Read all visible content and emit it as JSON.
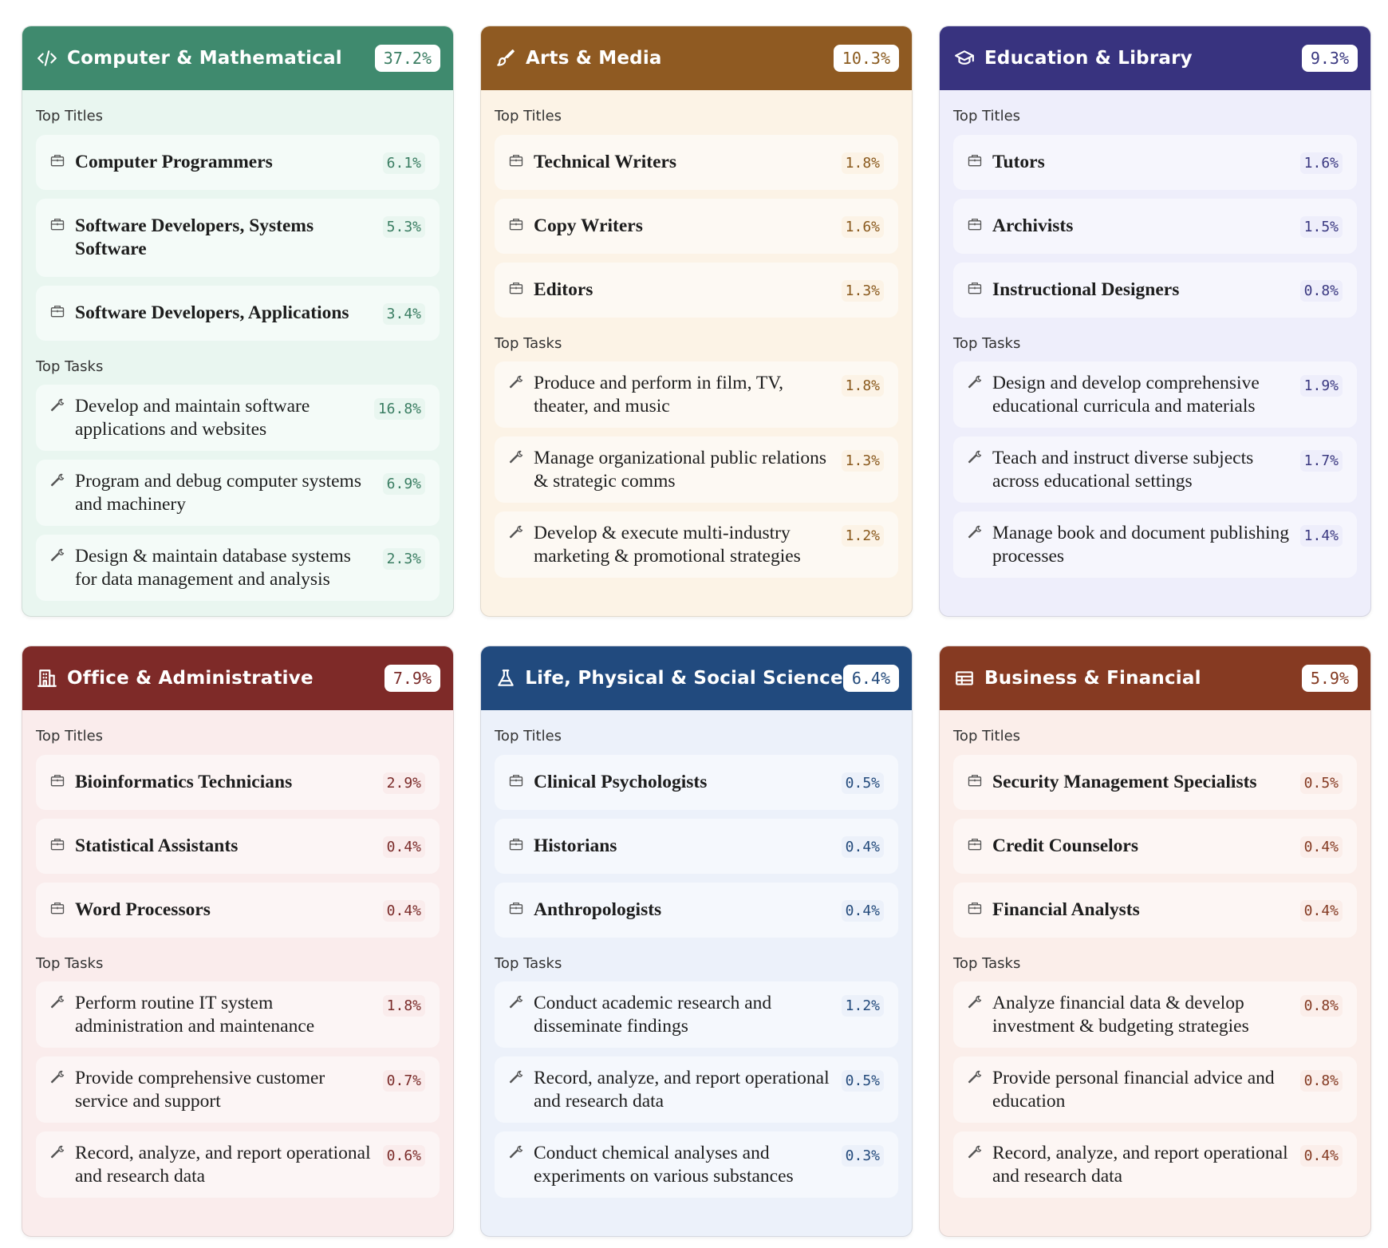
{
  "sections": {
    "titles": "Top Titles",
    "tasks": "Top Tasks"
  },
  "cards": [
    {
      "name": "Computer & Mathematical",
      "pct": "37.2%",
      "icon": "code-icon",
      "header_color": "#3f8a6e",
      "bg_color": "#e9f6f0",
      "item_bg": "#f4fbf8",
      "accent": "#3a7d62",
      "titles": [
        {
          "label": "Computer Programmers",
          "value": "6.1%"
        },
        {
          "label": "Software Developers, Systems Software",
          "value": "5.3%"
        },
        {
          "label": "Software Developers, Applications",
          "value": "3.4%"
        }
      ],
      "tasks": [
        {
          "label": "Develop and maintain software applications and websites",
          "value": "16.8%"
        },
        {
          "label": "Program and debug computer systems and machinery",
          "value": "6.9%"
        },
        {
          "label": "Design & maintain database systems for data management and analysis",
          "value": "2.3%"
        }
      ]
    },
    {
      "name": "Arts & Media",
      "pct": "10.3%",
      "icon": "brush-icon",
      "header_color": "#8f5a22",
      "bg_color": "#fcf3e6",
      "item_bg": "#fdf9f3",
      "accent": "#8a5a1e",
      "titles": [
        {
          "label": "Technical Writers",
          "value": "1.8%"
        },
        {
          "label": "Copy Writers",
          "value": "1.6%"
        },
        {
          "label": "Editors",
          "value": "1.3%"
        }
      ],
      "tasks": [
        {
          "label": "Produce and perform in film, TV, theater, and music",
          "value": "1.8%"
        },
        {
          "label": "Manage organizational public relations & strategic comms",
          "value": "1.3%"
        },
        {
          "label": "Develop & execute multi-industry marketing & promotional strategies",
          "value": "1.2%"
        }
      ]
    },
    {
      "name": "Education & Library",
      "pct": "9.3%",
      "icon": "graduation-cap-icon",
      "header_color": "#38337f",
      "bg_color": "#eeeefb",
      "item_bg": "#f6f6fd",
      "accent": "#3a3880",
      "titles": [
        {
          "label": "Tutors",
          "value": "1.6%"
        },
        {
          "label": "Archivists",
          "value": "1.5%"
        },
        {
          "label": "Instructional Designers",
          "value": "0.8%"
        }
      ],
      "tasks": [
        {
          "label": "Design and develop comprehensive educational curricula and materials",
          "value": "1.9%"
        },
        {
          "label": "Teach and instruct diverse subjects across educational settings",
          "value": "1.7%"
        },
        {
          "label": "Manage book and document publishing processes",
          "value": "1.4%"
        }
      ]
    },
    {
      "name": "Office & Administrative",
      "pct": "7.9%",
      "icon": "building-icon",
      "header_color": "#7e2a28",
      "bg_color": "#faecec",
      "item_bg": "#fcf5f5",
      "accent": "#7a2b29",
      "titles": [
        {
          "label": "Bioinformatics Technicians",
          "value": "2.9%"
        },
        {
          "label": "Statistical Assistants",
          "value": "0.4%"
        },
        {
          "label": "Word Processors",
          "value": "0.4%"
        }
      ],
      "tasks": [
        {
          "label": "Perform routine IT system administration and maintenance",
          "value": "1.8%"
        },
        {
          "label": "Provide comprehensive customer service and support",
          "value": "0.7%"
        },
        {
          "label": "Record, analyze, and report operational and research data",
          "value": "0.6%"
        }
      ]
    },
    {
      "name": "Life, Physical & Social Science",
      "pct": "6.4%",
      "icon": "flask-icon",
      "header_color": "#214a7e",
      "bg_color": "#ecf1fa",
      "item_bg": "#f5f8fd",
      "accent": "#244b7c",
      "titles": [
        {
          "label": "Clinical Psychologists",
          "value": "0.5%"
        },
        {
          "label": "Historians",
          "value": "0.4%"
        },
        {
          "label": "Anthropologists",
          "value": "0.4%"
        }
      ],
      "tasks": [
        {
          "label": "Conduct academic research and disseminate findings",
          "value": "1.2%"
        },
        {
          "label": "Record, analyze, and report operational and research data",
          "value": "0.5%"
        },
        {
          "label": "Conduct chemical analyses and experiments on various substances",
          "value": "0.3%"
        }
      ]
    },
    {
      "name": "Business & Financial",
      "pct": "5.9%",
      "icon": "table-icon",
      "header_color": "#863a22",
      "bg_color": "#fbeeea",
      "item_bg": "#fdf6f4",
      "accent": "#843a22",
      "titles": [
        {
          "label": "Security Management Specialists",
          "value": "0.5%"
        },
        {
          "label": "Credit Counselors",
          "value": "0.4%"
        },
        {
          "label": "Financial Analysts",
          "value": "0.4%"
        }
      ],
      "tasks": [
        {
          "label": "Analyze financial data & develop investment & budgeting strategies",
          "value": "0.8%"
        },
        {
          "label": "Provide personal financial advice and education",
          "value": "0.8%"
        },
        {
          "label": "Record, analyze, and report operational and research data",
          "value": "0.4%"
        }
      ]
    }
  ]
}
